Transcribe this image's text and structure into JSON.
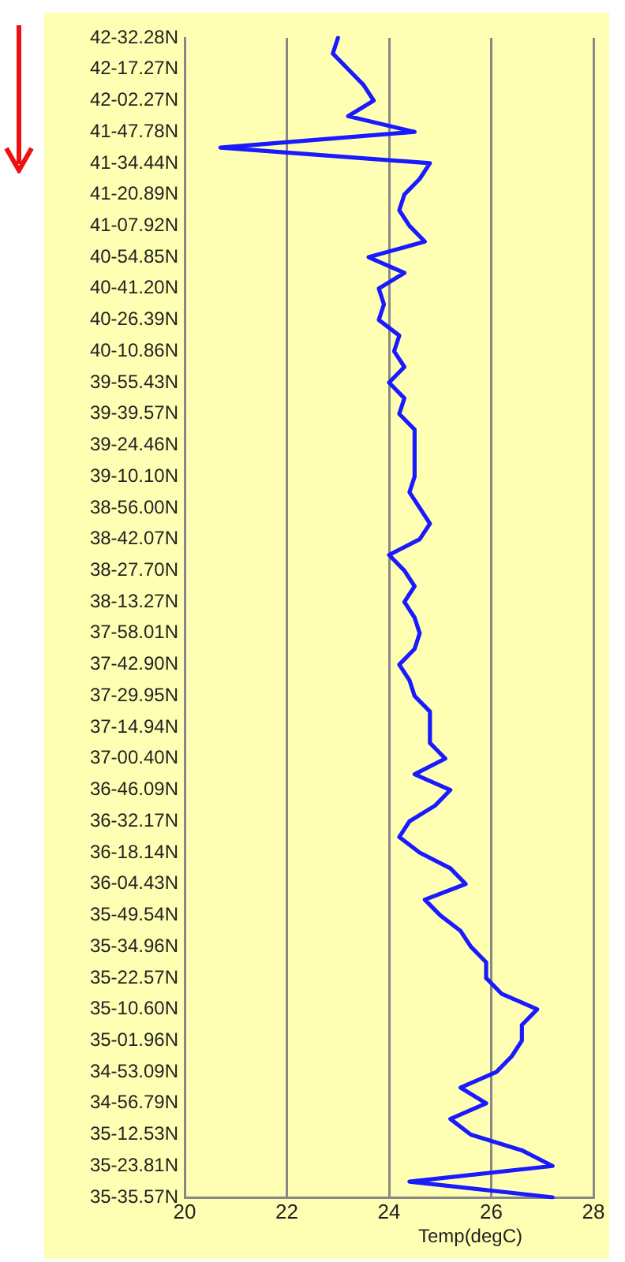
{
  "chart_data": {
    "type": "line",
    "orientation": "horizontal",
    "xlabel": "Temp(degC)",
    "categories": [
      "42-32.28N",
      null,
      "42-17.27N",
      null,
      "42-02.27N",
      null,
      "41-47.78N",
      null,
      "41-34.44N",
      null,
      "41-20.89N",
      null,
      "41-07.92N",
      null,
      "40-54.85N",
      null,
      "40-41.20N",
      null,
      "40-26.39N",
      null,
      "40-10.86N",
      null,
      "39-55.43N",
      null,
      "39-39.57N",
      null,
      "39-24.46N",
      null,
      "39-10.10N",
      null,
      "38-56.00N",
      null,
      "38-42.07N",
      null,
      "38-27.70N",
      null,
      "38-13.27N",
      null,
      "37-58.01N",
      null,
      "37-42.90N",
      null,
      "37-29.95N",
      null,
      "37-14.94N",
      null,
      "37-00.40N",
      null,
      "36-46.09N",
      null,
      "36-32.17N",
      null,
      "36-18.14N",
      null,
      "36-04.43N",
      null,
      "35-49.54N",
      null,
      "35-34.96N",
      null,
      "35-22.57N",
      null,
      "35-10.60N",
      null,
      "35-01.96N",
      null,
      "34-53.09N",
      null,
      "34-56.79N",
      null,
      "35-12.53N",
      null,
      "35-23.81N",
      null,
      "35-35.57N"
    ],
    "series": [
      {
        "color": "#1a1aff",
        "values": [
          23.0,
          22.9,
          23.2,
          23.5,
          23.7,
          23.2,
          24.5,
          20.7,
          24.8,
          24.6,
          24.3,
          24.2,
          24.4,
          24.7,
          23.6,
          24.3,
          23.8,
          23.9,
          23.8,
          24.2,
          24.1,
          24.3,
          24.0,
          24.3,
          24.2,
          24.5,
          24.5,
          24.5,
          24.5,
          24.4,
          24.6,
          24.8,
          24.6,
          24.0,
          24.3,
          24.5,
          24.3,
          24.5,
          24.6,
          24.5,
          24.2,
          24.4,
          24.5,
          24.8,
          24.8,
          24.8,
          25.1,
          24.5,
          25.2,
          24.9,
          24.4,
          24.2,
          24.6,
          25.2,
          25.5,
          24.7,
          25.0,
          25.4,
          25.6,
          25.9,
          25.9,
          26.2,
          26.9,
          26.6,
          26.6,
          26.4,
          26.1,
          25.4,
          25.9,
          25.2,
          25.6,
          26.6,
          27.2,
          24.4,
          27.2
        ]
      }
    ],
    "xlim": [
      20,
      28
    ],
    "xticks": [
      20,
      22,
      24,
      26,
      28
    ],
    "grid": "x",
    "legend": false,
    "marker": "none",
    "line_style": "solid"
  }
}
